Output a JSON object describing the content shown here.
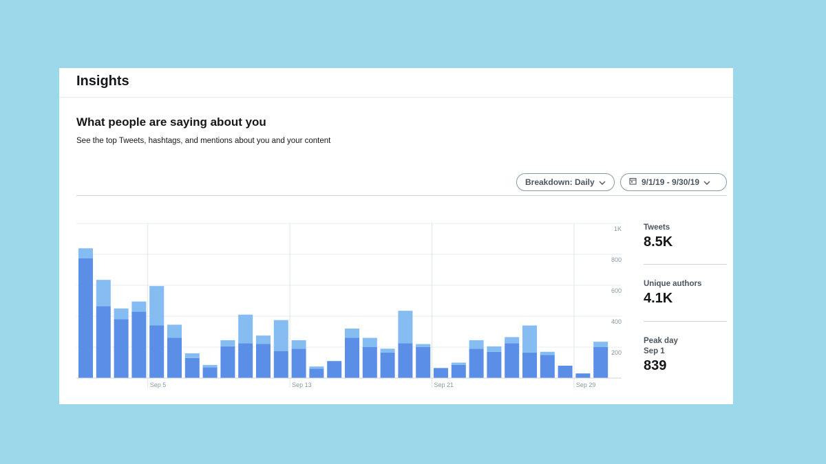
{
  "header": {
    "title": "Insights"
  },
  "section": {
    "title": "What people are saying about you",
    "subtitle": "See the top Tweets, hashtags, and mentions about you and your content"
  },
  "controls": {
    "breakdown_label": "Breakdown: Daily",
    "date_range_label": "9/1/19 - 9/30/19"
  },
  "stats": {
    "tweets_label": "Tweets",
    "tweets_value": "8.5K",
    "authors_label": "Unique authors",
    "authors_value": "4.1K",
    "peak_label": "Peak day",
    "peak_date": "Sep 1",
    "peak_value": "839"
  },
  "colors": {
    "background": "#9ad8ea",
    "bar_dark": "#5b8ee6",
    "bar_light": "#85bdf2"
  },
  "chart_data": {
    "type": "bar",
    "stacked": true,
    "categories": [
      "Sep 1",
      "Sep 2",
      "Sep 3",
      "Sep 4",
      "Sep 5",
      "Sep 6",
      "Sep 7",
      "Sep 8",
      "Sep 9",
      "Sep 10",
      "Sep 11",
      "Sep 12",
      "Sep 13",
      "Sep 14",
      "Sep 15",
      "Sep 16",
      "Sep 17",
      "Sep 18",
      "Sep 19",
      "Sep 20",
      "Sep 21",
      "Sep 22",
      "Sep 23",
      "Sep 24",
      "Sep 25",
      "Sep 26",
      "Sep 27",
      "Sep 28",
      "Sep 29",
      "Sep 30"
    ],
    "xtick_labels": [
      "Sep 5",
      "Sep 13",
      "Sep 21",
      "Sep 29"
    ],
    "ytick_labels": [
      "1K",
      "800",
      "600",
      "400",
      "200"
    ],
    "ylim": [
      0,
      1000
    ],
    "series": [
      {
        "values": [
          775,
          465,
          380,
          430,
          340,
          260,
          130,
          70,
          205,
          225,
          220,
          175,
          190,
          60,
          110,
          260,
          200,
          165,
          225,
          200,
          65,
          85,
          190,
          170,
          225,
          165,
          150,
          80,
          30,
          200
        ]
      },
      {
        "values": [
          64,
          170,
          70,
          65,
          255,
          85,
          30,
          15,
          40,
          185,
          55,
          200,
          55,
          15,
          0,
          60,
          60,
          25,
          210,
          20,
          0,
          15,
          55,
          35,
          40,
          175,
          20,
          0,
          0,
          35
        ]
      }
    ],
    "grid": true
  }
}
